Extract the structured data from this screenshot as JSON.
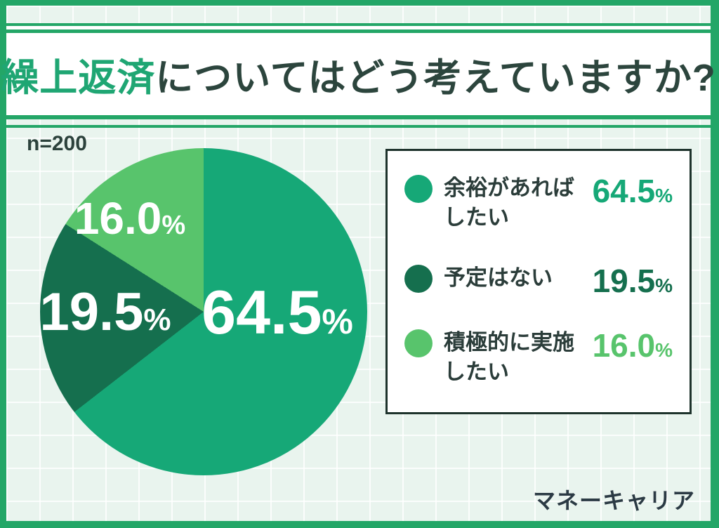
{
  "title": {
    "highlight": "繰上返済",
    "rest": "についてはどう考えていますか?"
  },
  "sample_label": "n=200",
  "brand": "マネーキャリア",
  "colors": {
    "frame_green": "#23a667",
    "background_mint": "#e9f4ee",
    "title_highlight_green": "#1fa673",
    "ink_dark": "#2c453d",
    "legend_border": "#1e332c"
  },
  "chart_data": {
    "type": "pie",
    "title": "繰上返済についてはどう考えていますか?",
    "sample_size": 200,
    "unit": "%",
    "start_angle_deg": 0,
    "direction": "clockwise",
    "legend_position": "right",
    "slices": [
      {
        "label": "余裕があればしたい",
        "value": 64.5,
        "color": "#16a877"
      },
      {
        "label": "予定はない",
        "value": 19.5,
        "color": "#156f4e"
      },
      {
        "label": "積極的に実施したい",
        "value": 16.0,
        "color": "#58c46c"
      }
    ]
  },
  "pie_labels": [
    {
      "num": "64.5",
      "sym": "%"
    },
    {
      "num": "19.5",
      "sym": "%"
    },
    {
      "num": "16.0",
      "sym": "%"
    }
  ],
  "legend": {
    "items": [
      {
        "label": "余裕があればしたい",
        "num": "64.5",
        "sym": "%"
      },
      {
        "label": "予定はない",
        "num": "19.5",
        "sym": "%"
      },
      {
        "label": "積極的に実施したい",
        "num": "16.0",
        "sym": "%"
      }
    ]
  }
}
